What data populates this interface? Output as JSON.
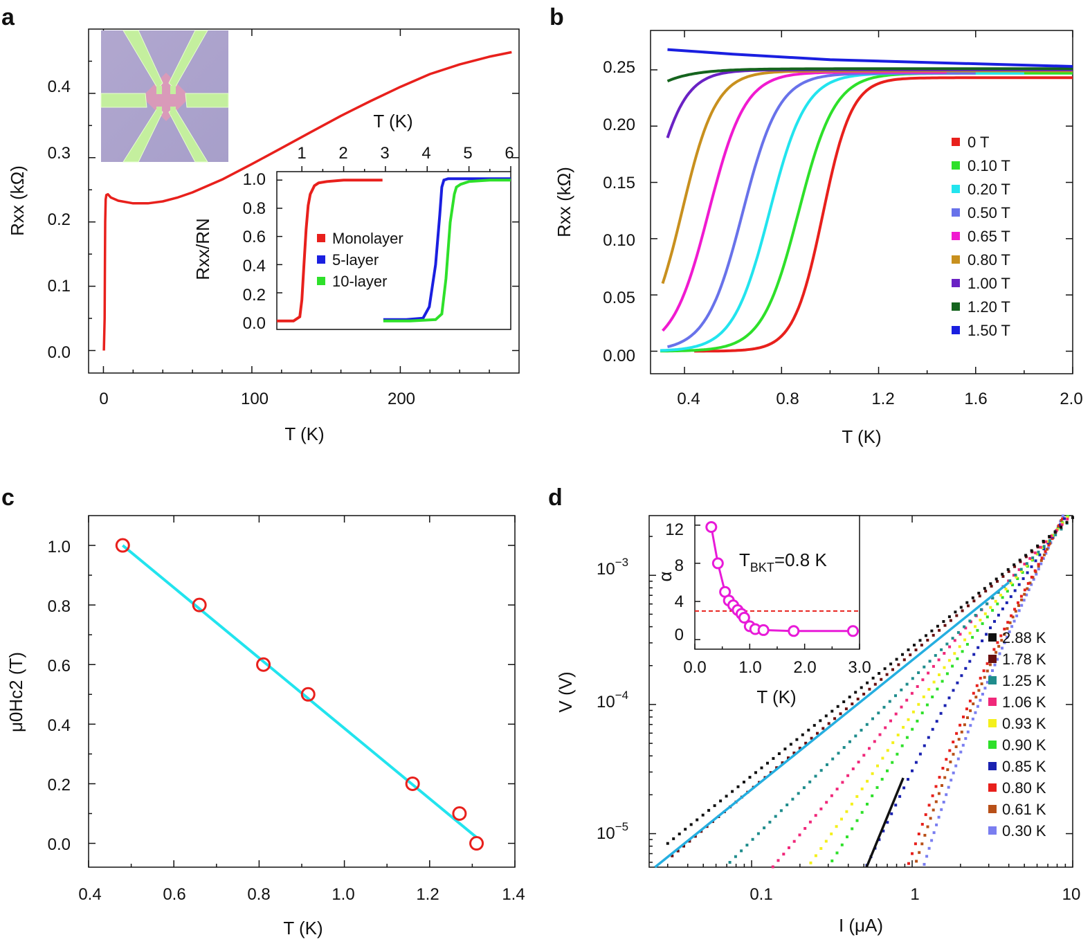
{
  "figure": {
    "panels": [
      {
        "letter": "a"
      },
      {
        "letter": "b"
      },
      {
        "letter": "c"
      },
      {
        "letter": "d"
      }
    ]
  },
  "colors": {
    "red": "#e8201c",
    "blue": "#1a1fe0",
    "green": "#2ee02a",
    "cyan": "#22e4ee",
    "slate": "#6872ea",
    "magenta": "#f01ad0",
    "gold": "#c8901e",
    "purple": "#6a22c4",
    "darkgreen": "#15641e",
    "sky": "#25aee0",
    "black": "#111111",
    "maroon": "#6a1010",
    "teal": "#1f8c8c",
    "pink": "#f0287a",
    "yellow": "#f4f01c",
    "navy": "#1a22b0",
    "brown": "#b85018",
    "lavender": "#7a7ef0",
    "inset_magenta": "#e81ad8"
  },
  "chart_data": [
    {
      "id": "a",
      "type": "line",
      "xlabel": "T (K)",
      "ylabel": "Rxx (kΩ)",
      "xlim": [
        -10,
        280
      ],
      "ylim": [
        -0.035,
        0.5
      ],
      "xticks": [
        "0",
        "100",
        "200"
      ],
      "yticks": [
        "0.0",
        "0.1",
        "0.2",
        "0.3",
        "0.4"
      ],
      "series": [
        {
          "name": "Rxx",
          "color": "red",
          "x": [
            0.3,
            0.8,
            1.0,
            1.2,
            1.5,
            2,
            3,
            5,
            10,
            20,
            30,
            40,
            50,
            60,
            80,
            100,
            120,
            140,
            160,
            180,
            200,
            220,
            240,
            260,
            275
          ],
          "y": [
            0.0,
            0.05,
            0.13,
            0.2,
            0.235,
            0.242,
            0.243,
            0.238,
            0.233,
            0.229,
            0.229,
            0.232,
            0.238,
            0.246,
            0.266,
            0.29,
            0.315,
            0.34,
            0.365,
            0.388,
            0.41,
            0.43,
            0.445,
            0.457,
            0.464
          ]
        }
      ],
      "inset_photo": "device-image",
      "inset": {
        "top_xlabel": "T (K)",
        "ylabel": "Rxx/RN",
        "xlim": [
          0.4,
          6
        ],
        "ylim": [
          -0.06,
          1.06
        ],
        "xticks": [
          "1",
          "2",
          "3",
          "4",
          "5",
          "6"
        ],
        "yticks": [
          "0.0",
          "0.2",
          "0.4",
          "0.6",
          "0.8",
          "1.0"
        ],
        "legend": [
          "Monolayer",
          "5-layer",
          "10-layer"
        ],
        "series": [
          {
            "name": "Monolayer",
            "color": "red",
            "x": [
              0.4,
              0.8,
              0.95,
              1.0,
              1.05,
              1.1,
              1.15,
              1.2,
              1.3,
              1.4,
              1.6,
              2.0,
              2.5,
              2.93
            ],
            "y": [
              0.0,
              0.0,
              0.03,
              0.15,
              0.4,
              0.65,
              0.82,
              0.9,
              0.96,
              0.98,
              0.99,
              1.0,
              1.0,
              1.0
            ]
          },
          {
            "name": "5-layer",
            "color": "blue",
            "x": [
              2.95,
              3.5,
              3.9,
              4.05,
              4.2,
              4.3,
              4.35,
              4.4,
              4.5,
              5.0,
              6.0
            ],
            "y": [
              0.01,
              0.01,
              0.02,
              0.1,
              0.4,
              0.75,
              0.95,
              1.0,
              1.01,
              1.01,
              1.01
            ]
          },
          {
            "name": "10-layer",
            "color": "green",
            "x": [
              2.95,
              3.6,
              4.2,
              4.35,
              4.45,
              4.55,
              4.65,
              4.7,
              4.8,
              5.0,
              5.5,
              6.0
            ],
            "y": [
              0.0,
              0.0,
              0.01,
              0.05,
              0.3,
              0.7,
              0.9,
              0.95,
              0.97,
              0.99,
              1.0,
              1.0
            ]
          }
        ]
      }
    },
    {
      "id": "b",
      "type": "line",
      "xlabel": "T (K)",
      "ylabel": "Rxx (kΩ)",
      "xlim": [
        0.26,
        2.0
      ],
      "ylim": [
        -0.02,
        0.285
      ],
      "xticks": [
        "0.4",
        "0.8",
        "1.2",
        "1.6",
        "2.0"
      ],
      "yticks": [
        "0.00",
        "0.05",
        "0.10",
        "0.15",
        "0.20",
        "0.25"
      ],
      "series": [
        {
          "name": "0 T",
          "color": "red",
          "tc": 0.97,
          "w": 0.06,
          "xmin": 0.44,
          "xmax": 2.0
        },
        {
          "name": "0.10 T",
          "color": "green",
          "tc": 0.87,
          "w": 0.075,
          "xmin": 0.3,
          "xmax": 2.0
        },
        {
          "name": "0.20 T",
          "color": "cyan",
          "tc": 0.75,
          "w": 0.075,
          "xmin": 0.3,
          "xmax": 1.8
        },
        {
          "name": "0.50 T",
          "color": "slate",
          "tc": 0.64,
          "w": 0.075,
          "xmin": 0.33,
          "xmax": 1.6
        },
        {
          "name": "0.65 T",
          "color": "magenta",
          "tc": 0.5,
          "w": 0.075,
          "xmin": 0.31,
          "xmax": 1.48
        },
        {
          "name": "0.80 T",
          "color": "gold",
          "tc": 0.39,
          "w": 0.07,
          "xmin": 0.31,
          "xmax": 2.0
        },
        {
          "name": "1.00 T",
          "color": "purple",
          "tc": 0.25,
          "w": 0.07,
          "xmin": 0.33,
          "xmax": 2.0
        },
        {
          "name": "1.20 T",
          "color": "darkgreen",
          "tc": 0.0,
          "w": 0.09,
          "xmin": 0.33,
          "xmax": 2.0
        },
        {
          "name": "1.50 T",
          "color": "blue",
          "x": [
            0.33,
            0.6,
            1.0,
            1.5,
            2.0
          ],
          "y": [
            0.268,
            0.264,
            0.259,
            0.256,
            0.253
          ]
        }
      ],
      "legend_entries": [
        "0 T",
        "0.10 T",
        "0.20 T",
        "0.50 T",
        "0.65 T",
        "0.80 T",
        "1.00 T",
        "1.20 T",
        "1.50 T"
      ]
    },
    {
      "id": "c",
      "type": "scatter",
      "xlabel": "T (K)",
      "ylabel": "μ0Hc2 (T)",
      "xlim": [
        0.4,
        1.4
      ],
      "ylim": [
        -0.08,
        1.1
      ],
      "xticks": [
        "0.4",
        "0.6",
        "0.8",
        "1.0",
        "1.2",
        "1.4"
      ],
      "yticks": [
        "0.0",
        "0.2",
        "0.4",
        "0.6",
        "0.8",
        "1.0"
      ],
      "points": {
        "x": [
          0.48,
          0.66,
          0.81,
          0.915,
          1.16,
          1.27,
          1.31
        ],
        "y": [
          1.0,
          0.8,
          0.6,
          0.5,
          0.2,
          0.1,
          0.0
        ]
      },
      "fit": {
        "x": [
          0.48,
          1.31
        ],
        "y": [
          1.0,
          0.02
        ]
      }
    },
    {
      "id": "d",
      "type": "scatter",
      "xlabel": "I (μA)",
      "ylabel": "V (V)",
      "xscale": "log",
      "yscale": "log",
      "xlim": [
        0.023,
        10
      ],
      "ylim": [
        5.5e-06,
        0.0029
      ],
      "xticks": [
        "0.1",
        "1",
        "10"
      ],
      "yticks": [
        {
          "base": "10",
          "exp": "−3",
          "v": 0.001
        },
        {
          "base": "10",
          "exp": "−4",
          "v": 0.0001
        },
        {
          "base": "10",
          "exp": "−5",
          "v": 1e-05
        }
      ],
      "series": [
        {
          "name": "2.88 K",
          "color": "black",
          "alpha": 1.0,
          "Ic": 0.0,
          "xmin": 0.03
        },
        {
          "name": "1.78 K",
          "color": "maroon",
          "alpha": 1.05,
          "Ic": 0.0,
          "xmin": 0.032
        },
        {
          "name": "1.25 K",
          "color": "teal",
          "alpha": 1.25,
          "Ic": 0.0,
          "xmin": 0.035
        },
        {
          "name": "1.06 K",
          "color": "pink",
          "alpha": 1.45,
          "Ic": 0.0,
          "xmin": 0.05
        },
        {
          "name": "0.93 K",
          "color": "yellow",
          "alpha": 1.65,
          "Ic": 0.0,
          "xmin": 0.062
        },
        {
          "name": "0.90 K",
          "color": "green",
          "alpha": 1.8,
          "Ic": 0.0,
          "xmin": 0.07
        },
        {
          "name": "0.85 K",
          "color": "navy",
          "alpha": 2.2,
          "Ic": 0.0,
          "xmin": 0.17
        },
        {
          "name": "0.80 K",
          "color": "red",
          "alpha": 3.0,
          "Ic": 0.0,
          "xmin": 0.34
        },
        {
          "name": "0.61 K",
          "color": "brown",
          "alpha": 3.2,
          "Ic": 0.0,
          "xmin": 0.6
        },
        {
          "name": "0.30 K",
          "color": "lavender",
          "alpha": 3.5,
          "Ic": 0.0,
          "xmin": 0.9
        }
      ],
      "lines": [
        {
          "name": "alpha-1 fit",
          "color": "sky",
          "x": [
            0.025,
            4.0
          ],
          "y": [
            5.5e-06,
            0.00088
          ]
        },
        {
          "name": "alpha-3 fit",
          "color": "black",
          "x": [
            0.52,
            0.88
          ],
          "y": [
            5.5e-06,
            2.7e-05
          ]
        }
      ],
      "legend_entries": [
        "2.88 K",
        "1.78 K",
        "1.25 K",
        "1.06 K",
        "0.93 K",
        "0.90 K",
        "0.85 K",
        "0.80 K",
        "0.61 K",
        "0.30 K"
      ],
      "inset": {
        "xlabel": "T (K)",
        "ylabel": "α",
        "annotation": {
          "main": "T",
          "sub": "BKT",
          "rest": "=0.8 K"
        },
        "xlim": [
          0,
          3.0
        ],
        "ylim": [
          -1,
          13
        ],
        "xticks": [
          "0.0",
          "1.0",
          "2.0",
          "3.0"
        ],
        "yticks": [
          "0",
          "4",
          "8",
          "12"
        ],
        "points": {
          "x": [
            0.3,
            0.42,
            0.55,
            0.62,
            0.7,
            0.78,
            0.85,
            0.9,
            1.0,
            1.1,
            1.25,
            1.8,
            2.88
          ],
          "y": [
            11.8,
            8.0,
            5.0,
            4.1,
            3.6,
            3.1,
            2.7,
            2.3,
            1.4,
            1.1,
            1.0,
            0.9,
            0.9
          ]
        },
        "reference_line": 3.0
      }
    }
  ]
}
